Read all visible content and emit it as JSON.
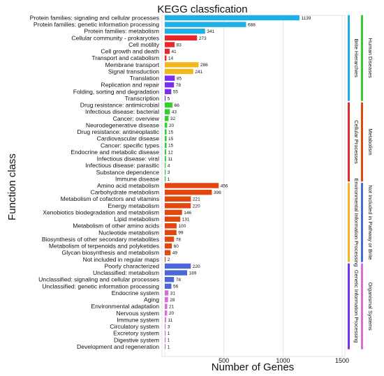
{
  "chart_data": {
    "type": "bar",
    "orientation": "horizontal",
    "title": "KEGG classfication",
    "xlabel": "Number of Genes",
    "ylabel": "Function class",
    "xlim": [
      0,
      1500
    ],
    "xticks": [
      500,
      1000,
      1500
    ],
    "grid": true,
    "groups": [
      {
        "name": "Human Diseases",
        "color": "#1db0e6",
        "sub": "Brite Hierarchies",
        "items": [
          {
            "label": "Protein families: signaling and cellular processes",
            "value": 1139
          },
          {
            "label": "Protein families: genetic information processing",
            "value": 688
          },
          {
            "label": "Protein families: metabolism",
            "value": 341
          }
        ]
      },
      {
        "name": "Metabolism",
        "color": "#e8262b",
        "sub": "Cellular Processes",
        "items": [
          {
            "label": "Cellular community - prokaryotes",
            "value": 273
          },
          {
            "label": "Cell motility",
            "value": 83
          },
          {
            "label": "Cell growth and death",
            "value": 41
          },
          {
            "label": "Transport and catabolism",
            "value": 14
          }
        ]
      },
      {
        "name": "Not Included in Pathway or Brite",
        "color": "#f2b81b",
        "sub": "Environmental Information Processing",
        "items": [
          {
            "label": "Membrane transport",
            "value": 286
          },
          {
            "label": "Signal transduction",
            "value": 241
          }
        ]
      },
      {
        "name": "Organismal Systems",
        "color": "#7b2ff0",
        "sub": "Genetic Information Processing",
        "items": [
          {
            "label": "Translation",
            "value": 85
          },
          {
            "label": "Replication and repair",
            "value": 78
          },
          {
            "label": "Folding, sorting and degradation",
            "value": 55
          },
          {
            "label": "Transcription",
            "value": 5
          }
        ]
      },
      {
        "name": "",
        "color": "#33cc33",
        "sub": "",
        "items": [
          {
            "label": "Drug resistance: antimicrobial",
            "value": 66
          },
          {
            "label": "Infectious disease: bacterial",
            "value": 43
          },
          {
            "label": "Cancer: overview",
            "value": 32
          },
          {
            "label": "Neurodegenerative disease",
            "value": 20
          },
          {
            "label": "Drug resistance: antineoplastic",
            "value": 15
          },
          {
            "label": "Cardiovascular disease",
            "value": 15
          },
          {
            "label": "Cancer: specific types",
            "value": 15
          },
          {
            "label": "Endocrine and metabolic disease",
            "value": 12
          },
          {
            "label": "Infectious disease: viral",
            "value": 11
          },
          {
            "label": "Infectious disease: parasitic",
            "value": 4
          },
          {
            "label": "Substance dependence",
            "value": 3
          },
          {
            "label": "Immune disease",
            "value": 1
          }
        ]
      },
      {
        "name": "",
        "color": "#e2470d",
        "sub": "",
        "items": [
          {
            "label": "Amino acid metabolism",
            "value": 456
          },
          {
            "label": "Carbohydrate metabolism",
            "value": 398
          },
          {
            "label": "Metabolism of cofactors and vitamins",
            "value": 221
          },
          {
            "label": "Energy metabolism",
            "value": 220
          },
          {
            "label": "Xenobiotics biodegradation and metabolism",
            "value": 146
          },
          {
            "label": "Lipid metabolism",
            "value": 131
          },
          {
            "label": "Metabolism of other amino acids",
            "value": 100
          },
          {
            "label": "Nucleotide metabolism",
            "value": 99
          },
          {
            "label": "Biosynthesis of other secondary metabolites",
            "value": 78
          },
          {
            "label": "Metabolism of terpenoids and polyketides",
            "value": 60
          },
          {
            "label": "Glycan biosynthesis and metabolism",
            "value": 49
          },
          {
            "label": "Not included in regular maps",
            "value": 2
          }
        ]
      },
      {
        "name": "",
        "color": "#4a68d8",
        "sub": "",
        "items": [
          {
            "label": "Poorly characterized",
            "value": 220
          },
          {
            "label": "Unclassified: metabolism",
            "value": 189
          },
          {
            "label": "Unclassified: signaling and cellular processes",
            "value": 78
          },
          {
            "label": "Unclassified: genetic information processing",
            "value": 56
          }
        ]
      },
      {
        "name": "",
        "color": "#d670d6",
        "sub": "",
        "items": [
          {
            "label": "Endocrine system",
            "value": 31
          },
          {
            "label": "Aging",
            "value": 28
          },
          {
            "label": "Environmental adaptation",
            "value": 21
          },
          {
            "label": "Nervous system",
            "value": 20
          },
          {
            "label": "Immune system",
            "value": 11
          },
          {
            "label": "Circulatory system",
            "value": 3
          },
          {
            "label": "Excretory system",
            "value": 1
          },
          {
            "label": "Digestive system",
            "value": 1
          },
          {
            "label": "Development and regeneration",
            "value": 1
          }
        ]
      }
    ],
    "legend_panels": [
      {
        "label": "Brite Hierarchies",
        "color": "#1db0e6",
        "outer": "Human Diseases",
        "outer_color": "#33cc33"
      },
      {
        "label": "Cellular Processes",
        "color": "#e8262b",
        "outer": "Metabolism",
        "outer_color": "#e2470d"
      },
      {
        "label": "Environmental Information Processing",
        "color": "#f2b81b",
        "outer": "Not Included in Pathway or Brite",
        "outer_color": "#4a68d8"
      },
      {
        "label": "Genetic Information Processing",
        "color": "#7b2ff0",
        "outer": "Organismal Systems",
        "outer_color": "#d670d6"
      }
    ]
  }
}
